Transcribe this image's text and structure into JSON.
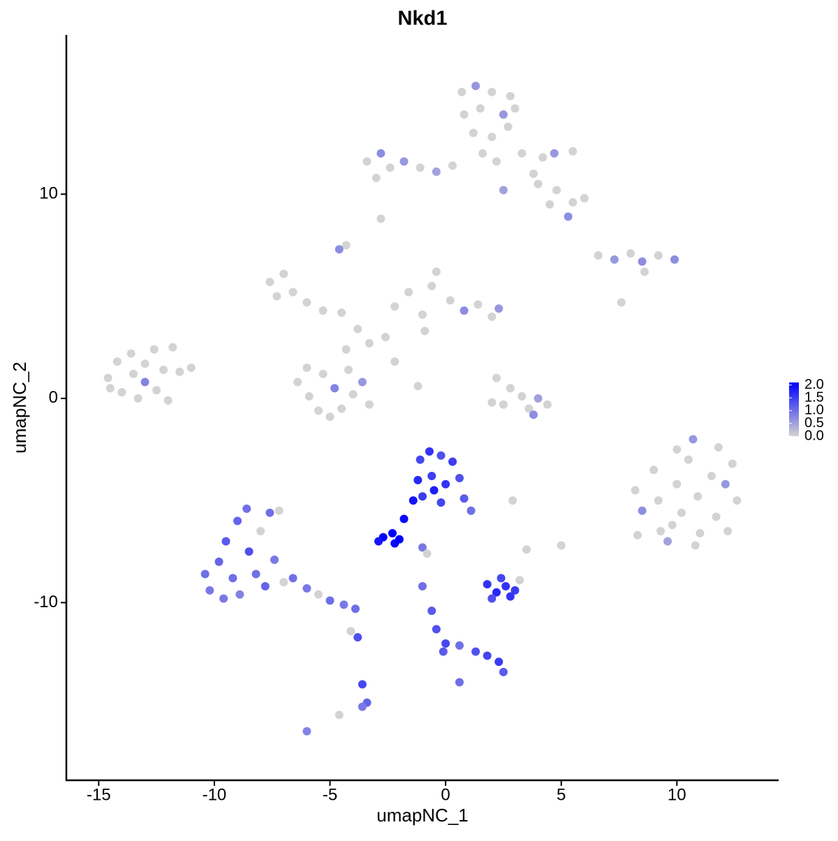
{
  "chart_data": {
    "type": "scatter",
    "title": "Nkd1",
    "x_label": "umapNC_1",
    "y_label": "umapNC_2",
    "xlim": [
      -16.4,
      14.4
    ],
    "ylim": [
      -18.7,
      17.8
    ],
    "xticks": [
      -15,
      -10,
      -5,
      0,
      5,
      10
    ],
    "yticks": [
      -10,
      0,
      10
    ],
    "color_low": "#d3d3d3",
    "color_high": "#0000ff",
    "color_lim": [
      0,
      2.1
    ],
    "color_ticks": [
      {
        "value": 0,
        "label": "0.0"
      },
      {
        "value": 0.5,
        "label": "0.5"
      },
      {
        "value": 1,
        "label": "1.0"
      },
      {
        "value": 1.5,
        "label": "1.5"
      },
      {
        "value": 2,
        "label": "2.0"
      }
    ],
    "x": [
      -14.6,
      -14.2,
      -14.0,
      -13.6,
      -13.5,
      -13.3,
      -13.0,
      -13.0,
      -12.6,
      -12.5,
      -12.2,
      -11.8,
      -11.5,
      -11.0,
      -12.0,
      -14.5,
      -6.4,
      -6.0,
      -5.9,
      -5.5,
      -5.3,
      -4.8,
      -4.5,
      -4.2,
      -4.0,
      -3.6,
      -5.0,
      -3.3,
      -4.3,
      -3.8,
      -3.3,
      -2.6,
      -4.5,
      -2.2,
      -1.2,
      -7.6,
      -7.0,
      -6.6,
      -6.0,
      -5.3,
      -7.3,
      -4.3,
      -4.6,
      -2.2,
      -1.6,
      -1.0,
      -0.6,
      -0.4,
      0.2,
      0.8,
      1.4,
      2.0,
      2.3,
      -0.9,
      0.7,
      1.3,
      2.0,
      2.8,
      0.8,
      1.5,
      2.5,
      3.0,
      1.2,
      2.0,
      2.7,
      1.6,
      2.2,
      -3.4,
      -2.8,
      -2.4,
      -1.8,
      -1.1,
      -0.4,
      0.3,
      -3.0,
      3.3,
      4.2,
      4.7,
      5.5,
      4.0,
      4.8,
      5.5,
      6.0,
      4.5,
      5.3,
      3.8,
      2.5,
      -2.8,
      6.6,
      7.3,
      8.0,
      8.5,
      9.2,
      9.9,
      8.6,
      7.6,
      2.2,
      2.8,
      3.3,
      2.5,
      3.6,
      4.0,
      3.8,
      2.0,
      4.4,
      8.2,
      8.5,
      8.3,
      9.0,
      9.2,
      9.3,
      9.6,
      10.0,
      10.0,
      10.2,
      10.5,
      10.7,
      10.9,
      11.0,
      11.5,
      11.8,
      11.7,
      12.1,
      12.4,
      12.6,
      12.2,
      10.8,
      9.8,
      -10.4,
      -10.2,
      -9.8,
      -9.6,
      -9.5,
      -9.2,
      -9.0,
      -8.9,
      -8.6,
      -8.5,
      -8.2,
      -8.0,
      -7.8,
      -7.6,
      -7.4,
      -7.2,
      -7.0,
      -6.6,
      -6.0,
      -5.5,
      -5.0,
      -4.4,
      -3.9,
      -3.8,
      -3.6,
      -3.4,
      -3.6,
      -4.1,
      -6.0,
      -4.6,
      -1.1,
      -0.7,
      -0.2,
      0.3,
      -1.2,
      -0.6,
      0.0,
      0.6,
      -1.0,
      -0.2,
      0.8,
      1.1,
      -0.5,
      -1.4,
      -1.8,
      -2.3,
      -2.7,
      -2.2,
      -2.9,
      -2.0,
      -1.0,
      -0.8,
      1.8,
      2.2,
      2.6,
      3.0,
      2.4,
      2.0,
      2.8,
      3.2,
      3.5,
      2.9,
      5.0,
      -1.0,
      -0.6,
      -0.4,
      0.0,
      -0.1,
      0.6,
      1.3,
      1.8,
      2.3,
      2.5,
      0.6
    ],
    "y": [
      1.0,
      1.8,
      0.3,
      2.2,
      1.2,
      0.0,
      1.7,
      0.8,
      2.4,
      0.4,
      1.4,
      2.5,
      1.3,
      1.5,
      -0.1,
      0.5,
      0.8,
      1.5,
      0.1,
      -0.6,
      1.2,
      0.5,
      -0.5,
      1.4,
      0.2,
      0.8,
      -0.9,
      -0.3,
      2.4,
      3.4,
      2.7,
      3.0,
      4.2,
      1.8,
      0.6,
      5.7,
      6.1,
      5.2,
      4.7,
      4.3,
      5.0,
      7.5,
      7.3,
      4.5,
      5.2,
      4.1,
      5.5,
      6.2,
      4.8,
      4.3,
      4.6,
      4.0,
      4.4,
      3.3,
      15.0,
      15.3,
      15.0,
      14.8,
      13.9,
      14.2,
      13.9,
      14.2,
      13.0,
      12.8,
      13.3,
      12.0,
      11.6,
      11.6,
      12.0,
      11.3,
      11.6,
      11.3,
      11.1,
      11.4,
      10.8,
      12.0,
      11.8,
      12.0,
      12.1,
      10.5,
      10.2,
      9.6,
      9.8,
      9.5,
      8.9,
      11.0,
      10.2,
      8.8,
      7.0,
      6.8,
      7.1,
      6.7,
      7.0,
      6.8,
      6.2,
      4.7,
      1.0,
      0.5,
      0.1,
      -0.3,
      -0.5,
      0.0,
      -0.8,
      -0.2,
      -0.3,
      -4.5,
      -5.5,
      -6.7,
      -3.5,
      -5.0,
      -6.5,
      -7.0,
      -2.5,
      -4.2,
      -5.6,
      -3.0,
      -2.0,
      -4.8,
      -6.6,
      -3.8,
      -2.4,
      -5.8,
      -4.2,
      -3.2,
      -5.0,
      -6.5,
      -7.2,
      -6.2,
      -8.6,
      -9.4,
      -8.0,
      -9.8,
      -7.0,
      -8.8,
      -6.0,
      -9.6,
      -5.4,
      -7.5,
      -8.6,
      -6.5,
      -9.2,
      -5.6,
      -7.9,
      -5.5,
      -9.0,
      -8.8,
      -9.3,
      -9.6,
      -9.9,
      -10.1,
      -10.3,
      -11.7,
      -14.0,
      -14.9,
      -15.1,
      -11.4,
      -16.3,
      -15.5,
      -3.0,
      -2.6,
      -2.8,
      -3.1,
      -4.0,
      -3.8,
      -4.2,
      -3.9,
      -4.8,
      -5.1,
      -4.9,
      -5.5,
      -4.5,
      -5.0,
      -5.9,
      -6.6,
      -6.8,
      -7.1,
      -7.0,
      -6.9,
      -7.3,
      -7.6,
      -9.1,
      -9.5,
      -9.2,
      -9.4,
      -8.8,
      -9.8,
      -9.7,
      -8.9,
      -7.4,
      -5.0,
      -7.2,
      -9.2,
      -10.4,
      -11.3,
      -12.0,
      -12.4,
      -12.1,
      -12.4,
      -12.6,
      -12.9,
      -13.4,
      -13.9
    ],
    "values": [
      0,
      0,
      0,
      0,
      0,
      0,
      0,
      0.8,
      0,
      0,
      0,
      0,
      0,
      0,
      0,
      0,
      0,
      0,
      0,
      0,
      0,
      0.8,
      0,
      0,
      0,
      0.6,
      0,
      0,
      0,
      0,
      0,
      0,
      0,
      0,
      0,
      0,
      0,
      0,
      0,
      0,
      0,
      0,
      0.7,
      0,
      0,
      0,
      0,
      0,
      0,
      0.7,
      0,
      0,
      0.6,
      0,
      0,
      0.6,
      0,
      0,
      0,
      0,
      0.6,
      0,
      0,
      0,
      0,
      0,
      0,
      0,
      0.7,
      0,
      0.6,
      0,
      0.5,
      0,
      0,
      0,
      0,
      0.6,
      0,
      0,
      0,
      0,
      0,
      0,
      0.7,
      0,
      0.5,
      0,
      0,
      0.6,
      0,
      0.7,
      0,
      0.7,
      0,
      0,
      0,
      0,
      0,
      0,
      0,
      0.5,
      0.7,
      0,
      0,
      0,
      0.7,
      0,
      0,
      0,
      0,
      0.5,
      0,
      0,
      0,
      0,
      0.6,
      0,
      0,
      0,
      0,
      0,
      0.6,
      0,
      0,
      0,
      0,
      0,
      1.0,
      0.9,
      1.1,
      0.9,
      1.2,
      1.0,
      1.1,
      0.8,
      1.0,
      1.3,
      1.0,
      0,
      1.1,
      1.0,
      0.9,
      0,
      0,
      1.0,
      0.9,
      0,
      1.0,
      0.9,
      1.0,
      1.3,
      1.4,
      1.1,
      0.9,
      0,
      0.8,
      0,
      1.4,
      1.6,
      1.3,
      1.5,
      1.7,
      1.5,
      1.6,
      1.3,
      1.5,
      1.4,
      1.2,
      1.0,
      1.8,
      1.9,
      2.0,
      2.1,
      2.1,
      2.0,
      1.9,
      2.1,
      0.9,
      0,
      1.6,
      1.7,
      1.6,
      1.5,
      1.4,
      1.3,
      1.6,
      0,
      0,
      0,
      0,
      1.0,
      1.2,
      1.3,
      1.4,
      1.2,
      1.0,
      1.3,
      1.4,
      1.5,
      1.2,
      1.0
    ]
  }
}
